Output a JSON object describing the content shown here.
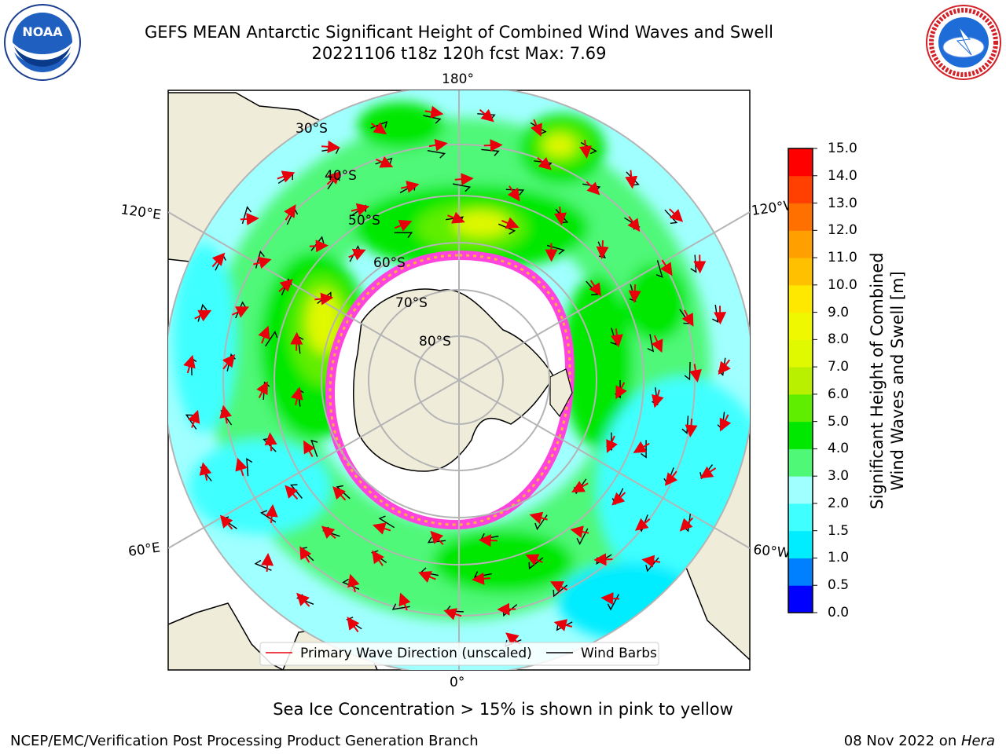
{
  "title": {
    "line1": "GEFS MEAN Antarctic Significant Height of Combined Wind Waves and Swell",
    "line2": "20221106 t18z 120h fcst   Max: 7.69"
  },
  "map": {
    "projection": "south polar stereographic",
    "longitude_labels": {
      "top": "180°",
      "upper_left": "120°E",
      "upper_right": "120°W",
      "lower_left": "60°E",
      "lower_right": "60°W",
      "bottom": "0°"
    },
    "latitude_labels": [
      "30°S",
      "40°S",
      "50°S",
      "60°S",
      "70°S",
      "80°S"
    ],
    "land_color": "#efedda",
    "sea_ice_colors": [
      "#ff44dd",
      "#ffb040"
    ]
  },
  "legend": {
    "wave_direction": "Primary Wave Direction (unscaled)",
    "wind_barbs": "Wind Barbs",
    "wave_color": "#e8000b",
    "barb_color": "#000000"
  },
  "colorbar": {
    "title_line1": "Significant Height of Combined",
    "title_line2": "Wind Waves and Swell [m]",
    "ticks": [
      "15.0",
      "14.0",
      "13.0",
      "12.0",
      "11.0",
      "10.0",
      "9.0",
      "8.0",
      "7.0",
      "6.0",
      "5.0",
      "4.0",
      "3.0",
      "2.0",
      "1.5",
      "1.0",
      "0.5",
      "0.0"
    ],
    "bands": [
      {
        "from": 0.0,
        "to": 0.5,
        "color": "#0000ff"
      },
      {
        "from": 0.5,
        "to": 1.0,
        "color": "#0080ff"
      },
      {
        "from": 1.0,
        "to": 1.5,
        "color": "#00ecff"
      },
      {
        "from": 1.5,
        "to": 2.0,
        "color": "#40ffff"
      },
      {
        "from": 2.0,
        "to": 3.0,
        "color": "#a0ffff"
      },
      {
        "from": 3.0,
        "to": 4.0,
        "color": "#50f878"
      },
      {
        "from": 4.0,
        "to": 5.0,
        "color": "#00e800"
      },
      {
        "from": 5.0,
        "to": 6.0,
        "color": "#60ee00"
      },
      {
        "from": 6.0,
        "to": 7.0,
        "color": "#b8f000"
      },
      {
        "from": 7.0,
        "to": 8.0,
        "color": "#e0f800"
      },
      {
        "from": 8.0,
        "to": 9.0,
        "color": "#f0f800"
      },
      {
        "from": 9.0,
        "to": 10.0,
        "color": "#ffe800"
      },
      {
        "from": 10.0,
        "to": 11.0,
        "color": "#ffc000"
      },
      {
        "from": 11.0,
        "to": 12.0,
        "color": "#ffa000"
      },
      {
        "from": 12.0,
        "to": 13.0,
        "color": "#ff7000"
      },
      {
        "from": 13.0,
        "to": 14.0,
        "color": "#ff4000"
      },
      {
        "from": 14.0,
        "to": 15.0,
        "color": "#ff0000"
      }
    ]
  },
  "caption": "Sea Ice Concentration > 15% is shown in pink to yellow",
  "credit": "NCEP/EMC/Verification Post Processing Product Generation Branch",
  "date": {
    "text": "08 Nov 2022 on ",
    "machine": "Hera"
  },
  "logos": {
    "left": {
      "name": "noaa-logo",
      "text": "NOAA"
    },
    "right": {
      "name": "nws-logo",
      "text": "NATIONAL WEATHER SERVICE"
    }
  }
}
